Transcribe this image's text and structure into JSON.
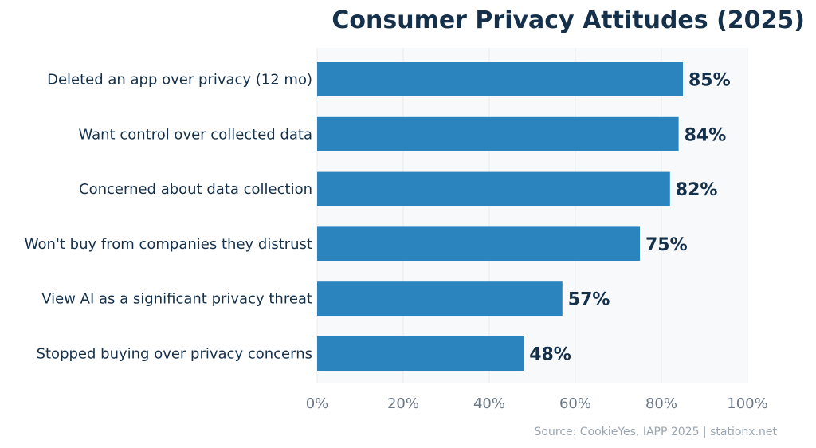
{
  "chart_data": {
    "type": "bar",
    "orientation": "horizontal",
    "title": "Consumer Privacy Attitudes (2025)",
    "categories": [
      "Deleted an app over privacy (12 mo)",
      "Want control over collected data",
      "Concerned about data collection",
      "Won't buy from companies they distrust",
      "View AI as a significant privacy threat",
      "Stopped buying over privacy concerns"
    ],
    "values": [
      85,
      84,
      82,
      75,
      57,
      48
    ],
    "value_labels": [
      "85%",
      "84%",
      "82%",
      "75%",
      "57%",
      "48%"
    ],
    "xlim": [
      0,
      100
    ],
    "x_ticks": [
      0,
      20,
      40,
      60,
      80,
      100
    ],
    "x_tick_labels": [
      "0%",
      "20%",
      "40%",
      "60%",
      "80%",
      "100%"
    ],
    "grid": true,
    "source": "Source: CookieYes, IAPP 2025 | stationx.net"
  },
  "colors": {
    "bar": "#2b84be",
    "plot_bg": "#f7f9fb",
    "grid": "#e9edf1",
    "text": "#14304a",
    "tick": "#6b7785"
  }
}
